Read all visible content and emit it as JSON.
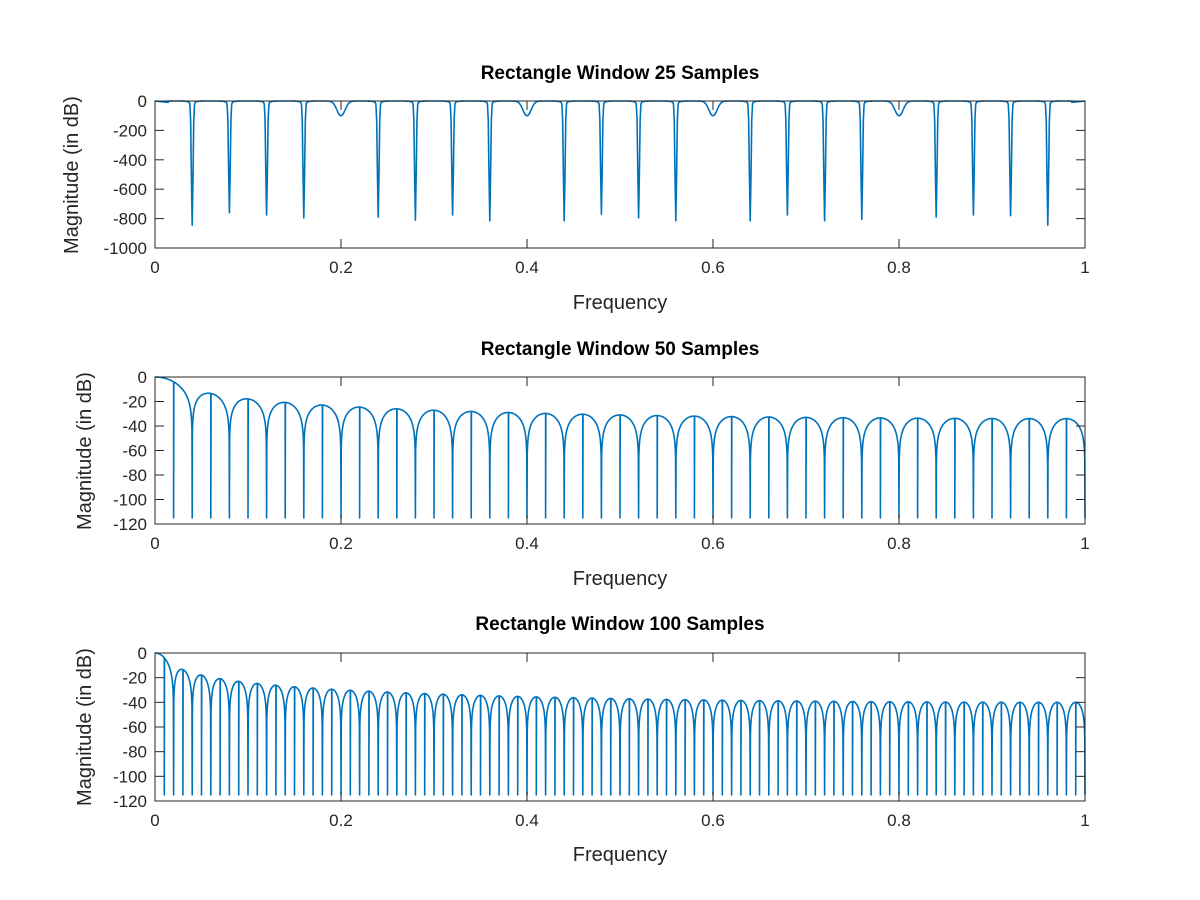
{
  "chart_data": [
    {
      "type": "line",
      "title": "Rectangle Window 25 Samples",
      "xlabel": "Frequency",
      "ylabel": "Magnitude (in dB)",
      "window_samples": 25,
      "xlim": [
        0,
        1
      ],
      "ylim": [
        -1000,
        0
      ],
      "xticks": [
        0,
        0.2,
        0.4,
        0.6,
        0.8,
        1
      ],
      "xtick_labels": [
        "0",
        "0.2",
        "0.4",
        "0.6",
        "0.8",
        "1"
      ],
      "yticks": [
        0,
        -200,
        -400,
        -600,
        -800,
        -1000
      ],
      "ytick_labels": [
        "0",
        "-200",
        "-400",
        "-600",
        "-800",
        "-1000"
      ],
      "grid": false,
      "series_color": "#0072BD",
      "nulls": [
        {
          "x": 0.04,
          "y": -845
        },
        {
          "x": 0.08,
          "y": -760
        },
        {
          "x": 0.12,
          "y": -775
        },
        {
          "x": 0.16,
          "y": -795
        },
        {
          "x": 0.24,
          "y": -790
        },
        {
          "x": 0.28,
          "y": -810
        },
        {
          "x": 0.32,
          "y": -775
        },
        {
          "x": 0.36,
          "y": -815
        },
        {
          "x": 0.44,
          "y": -815
        },
        {
          "x": 0.48,
          "y": -770
        },
        {
          "x": 0.52,
          "y": -795
        },
        {
          "x": 0.56,
          "y": -815
        },
        {
          "x": 0.64,
          "y": -815
        },
        {
          "x": 0.68,
          "y": -775
        },
        {
          "x": 0.72,
          "y": -815
        },
        {
          "x": 0.76,
          "y": -805
        },
        {
          "x": 0.84,
          "y": -790
        },
        {
          "x": 0.88,
          "y": -775
        },
        {
          "x": 0.92,
          "y": -780
        },
        {
          "x": 0.96,
          "y": -845
        }
      ],
      "shallow_dips": [
        {
          "x": 0.2,
          "y": -100
        },
        {
          "x": 0.4,
          "y": -100
        },
        {
          "x": 0.6,
          "y": -100
        },
        {
          "x": 0.8,
          "y": -100
        }
      ]
    },
    {
      "type": "line",
      "title": "Rectangle Window 50 Samples",
      "xlabel": "Frequency",
      "ylabel": "Magnitude (in dB)",
      "window_samples": 50,
      "xlim": [
        0,
        1
      ],
      "ylim": [
        -120,
        0
      ],
      "xticks": [
        0,
        0.2,
        0.4,
        0.6,
        0.8,
        1
      ],
      "xtick_labels": [
        "0",
        "0.2",
        "0.4",
        "0.6",
        "0.8",
        "1"
      ],
      "yticks": [
        0,
        -20,
        -40,
        -60,
        -80,
        -100,
        -120
      ],
      "ytick_labels": [
        "0",
        "-20",
        "-40",
        "-60",
        "-80",
        "-100",
        "-120"
      ],
      "grid": false,
      "series_color": "#0072BD",
      "null_spacing": 0.02,
      "null_min_db": -115,
      "floor_db": -120
    },
    {
      "type": "line",
      "title": "Rectangle Window 100 Samples",
      "xlabel": "Frequency",
      "ylabel": "Magnitude (in dB)",
      "window_samples": 100,
      "xlim": [
        0,
        1
      ],
      "ylim": [
        -120,
        0
      ],
      "xticks": [
        0,
        0.2,
        0.4,
        0.6,
        0.8,
        1
      ],
      "xtick_labels": [
        "0",
        "0.2",
        "0.4",
        "0.6",
        "0.8",
        "1"
      ],
      "yticks": [
        0,
        -20,
        -40,
        -60,
        -80,
        -100,
        -120
      ],
      "ytick_labels": [
        "0",
        "-20",
        "-40",
        "-60",
        "-80",
        "-100",
        "-120"
      ],
      "grid": false,
      "series_color": "#0072BD",
      "null_spacing": 0.01,
      "null_min_db": -115,
      "floor_db": -120
    }
  ]
}
